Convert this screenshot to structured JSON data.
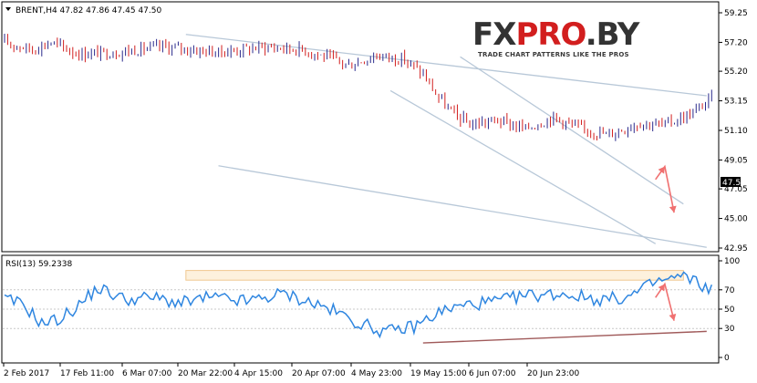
{
  "header": {
    "symbol_line": "BRENT,H4  47.82 47.86 47.45 47.50",
    "rsi_line": "RSI(13) 59.2338"
  },
  "logo": {
    "main_dark1": "FX",
    "main_red": "PRO",
    "main_dark2": ".BY",
    "tagline": "TRADE CHART PATTERNS LIKE THE PROS"
  },
  "colors": {
    "candle_up": "#2a2a8c",
    "candle_down": "#d21e1e",
    "rsi_line": "#2f86e0",
    "channel": "#b8c8d8",
    "arrow": "#f07070",
    "rsi_trend": "#a05a5a",
    "zone_fill": "#fdf1dd",
    "zone_stroke": "#f0c890",
    "price_tag_bg": "#000000",
    "price_tag_fg": "#ffffff"
  },
  "chart_data": [
    {
      "type": "candlestick",
      "title": "BRENT,H4",
      "ohlc_last": {
        "open": 47.82,
        "high": 47.86,
        "low": 47.45,
        "close": 47.5
      },
      "current_price_label": "47.50",
      "y_ticks": [
        "59.25",
        "57.20",
        "55.20",
        "53.15",
        "51.10",
        "49.05",
        "47.05",
        "45.00",
        "42.95"
      ],
      "ylim": [
        42.95,
        59.25
      ],
      "x_ticks": [
        "2 Feb 2017",
        "17 Feb 11:00",
        "6 Mar 07:00",
        "20 Mar 22:00",
        "4 Apr 15:00",
        "20 Apr 07:00",
        "4 May 23:00",
        "19 May 15:00",
        "6 Jun 07:00",
        "20 Jun 23:00"
      ],
      "anchors": [
        [
          0,
          57.2
        ],
        [
          6,
          56.7
        ],
        [
          10,
          57.2
        ],
        [
          16,
          56.4
        ],
        [
          24,
          56.5
        ],
        [
          34,
          56.9
        ],
        [
          46,
          56.5
        ],
        [
          56,
          56.9
        ],
        [
          64,
          56.7
        ],
        [
          70,
          56.1
        ],
        [
          74,
          55.6
        ],
        [
          80,
          56.3
        ],
        [
          86,
          56.0
        ],
        [
          90,
          55.0
        ],
        [
          93,
          53.5
        ],
        [
          96,
          52.4
        ],
        [
          100,
          51.5
        ],
        [
          106,
          51.8
        ],
        [
          112,
          51.2
        ],
        [
          118,
          52.0
        ],
        [
          124,
          51.2
        ],
        [
          130,
          50.8
        ],
        [
          136,
          51.6
        ],
        [
          142,
          51.5
        ],
        [
          148,
          52.3
        ],
        [
          152,
          53.3
        ],
        [
          158,
          53.9
        ],
        [
          162,
          55.0
        ],
        [
          166,
          55.4
        ],
        [
          170,
          56.4
        ],
        [
          174,
          56.2
        ],
        [
          180,
          56.7
        ],
        [
          186,
          56.4
        ],
        [
          190,
          55.8
        ],
        [
          192,
          54.8
        ],
        [
          194,
          53.6
        ],
        [
          198,
          53.4
        ],
        [
          204,
          53.0
        ],
        [
          210,
          52.4
        ],
        [
          216,
          53.0
        ],
        [
          222,
          52.0
        ],
        [
          228,
          51.4
        ],
        [
          230,
          50.0
        ],
        [
          232,
          47.4
        ],
        [
          236,
          49.0
        ],
        [
          240,
          49.6
        ],
        [
          244,
          50.6
        ],
        [
          248,
          51.0
        ],
        [
          252,
          51.6
        ],
        [
          256,
          52.5
        ],
        [
          262,
          53.0
        ],
        [
          268,
          53.5
        ],
        [
          274,
          54.3
        ],
        [
          278,
          54.8
        ],
        [
          282,
          54.6
        ],
        [
          286,
          53.0
        ],
        [
          290,
          52.2
        ],
        [
          294,
          51.4
        ],
        [
          298,
          50.6
        ],
        [
          302,
          50.8
        ],
        [
          306,
          50.0
        ],
        [
          310,
          49.0
        ],
        [
          314,
          48.6
        ],
        [
          318,
          49.1
        ],
        [
          322,
          48.5
        ],
        [
          326,
          48.0
        ],
        [
          330,
          47.8
        ],
        [
          334,
          47.2
        ],
        [
          336,
          46.5
        ],
        [
          338,
          45.3
        ],
        [
          340,
          45.6
        ],
        [
          344,
          46.4
        ],
        [
          348,
          46.7
        ],
        [
          352,
          47.6
        ],
        [
          356,
          48.1
        ],
        [
          360,
          48.3
        ],
        [
          364,
          47.5
        ]
      ],
      "annotations": [
        {
          "type": "channel-line",
          "from": {
            "x": "13 Mar 2017",
            "y": 57.75
          },
          "to": {
            "x": "3 Jul 2017",
            "y": 53.5
          }
        },
        {
          "type": "channel-line",
          "from": {
            "x": "20 Mar 2017",
            "y": 48.65
          },
          "to": {
            "x": "3 Jul 2017",
            "y": 43.0
          }
        },
        {
          "type": "channel-line",
          "from": {
            "x": "26 Apr 2017",
            "y": 53.85
          },
          "to": {
            "x": "22 Jun 2017",
            "y": 43.25
          }
        },
        {
          "type": "channel-line",
          "from": {
            "x": "11 May 2017",
            "y": 56.2
          },
          "to": {
            "x": "28 Jun 2017",
            "y": 46.0
          }
        },
        {
          "type": "arrow",
          "points": [
            {
              "x": "22 Jun 2017",
              "y": 47.7
            },
            {
              "x": "24 Jun 2017",
              "y": 48.6
            },
            {
              "x": "26 Jun 2017",
              "y": 45.4
            }
          ]
        }
      ]
    },
    {
      "type": "line",
      "title": "RSI(13)",
      "last_value": 59.2338,
      "y_ticks": [
        "100",
        "70",
        "50",
        "30",
        "0"
      ],
      "ylim": [
        0,
        100
      ],
      "levels": [
        70,
        50,
        30
      ],
      "anchors": [
        [
          0,
          60
        ],
        [
          4,
          55
        ],
        [
          8,
          35
        ],
        [
          12,
          40
        ],
        [
          16,
          54
        ],
        [
          20,
          72
        ],
        [
          26,
          60
        ],
        [
          32,
          62
        ],
        [
          38,
          56
        ],
        [
          44,
          62
        ],
        [
          52,
          58
        ],
        [
          60,
          66
        ],
        [
          64,
          60
        ],
        [
          70,
          50
        ],
        [
          76,
          36
        ],
        [
          82,
          26
        ],
        [
          88,
          32
        ],
        [
          94,
          48
        ],
        [
          100,
          55
        ],
        [
          106,
          58
        ],
        [
          112,
          64
        ],
        [
          120,
          66
        ],
        [
          128,
          60
        ],
        [
          134,
          62
        ],
        [
          140,
          78
        ],
        [
          146,
          84
        ],
        [
          152,
          70
        ],
        [
          158,
          82
        ],
        [
          164,
          78
        ],
        [
          170,
          72
        ],
        [
          176,
          76
        ],
        [
          182,
          62
        ],
        [
          188,
          48
        ],
        [
          194,
          40
        ],
        [
          200,
          44
        ],
        [
          206,
          54
        ],
        [
          212,
          52
        ],
        [
          218,
          40
        ],
        [
          224,
          28
        ],
        [
          228,
          18
        ],
        [
          232,
          40
        ],
        [
          238,
          58
        ],
        [
          244,
          68
        ],
        [
          250,
          78
        ],
        [
          256,
          76
        ],
        [
          262,
          70
        ],
        [
          268,
          80
        ],
        [
          272,
          76
        ],
        [
          276,
          56
        ],
        [
          282,
          44
        ],
        [
          288,
          40
        ],
        [
          294,
          46
        ],
        [
          300,
          40
        ],
        [
          306,
          48
        ],
        [
          312,
          42
        ],
        [
          318,
          52
        ],
        [
          324,
          56
        ],
        [
          330,
          48
        ],
        [
          336,
          26
        ],
        [
          340,
          40
        ],
        [
          346,
          58
        ],
        [
          350,
          62
        ],
        [
          354,
          78
        ],
        [
          358,
          70
        ],
        [
          364,
          59
        ]
      ],
      "annotations": [
        {
          "type": "zone",
          "from": {
            "x": "13 Mar 2017",
            "y": 90
          },
          "to": {
            "x": "28 Jun 2017",
            "y": 80
          }
        },
        {
          "type": "trend-line",
          "from": {
            "x": "3 May 2017",
            "y": 15
          },
          "to": {
            "x": "3 Jul 2017",
            "y": 27
          }
        },
        {
          "type": "arrow",
          "points": [
            {
              "x": "22 Jun 2017",
              "y": 62
            },
            {
              "x": "24 Jun 2017",
              "y": 76
            },
            {
              "x": "26 Jun 2017",
              "y": 38
            }
          ]
        }
      ]
    }
  ]
}
